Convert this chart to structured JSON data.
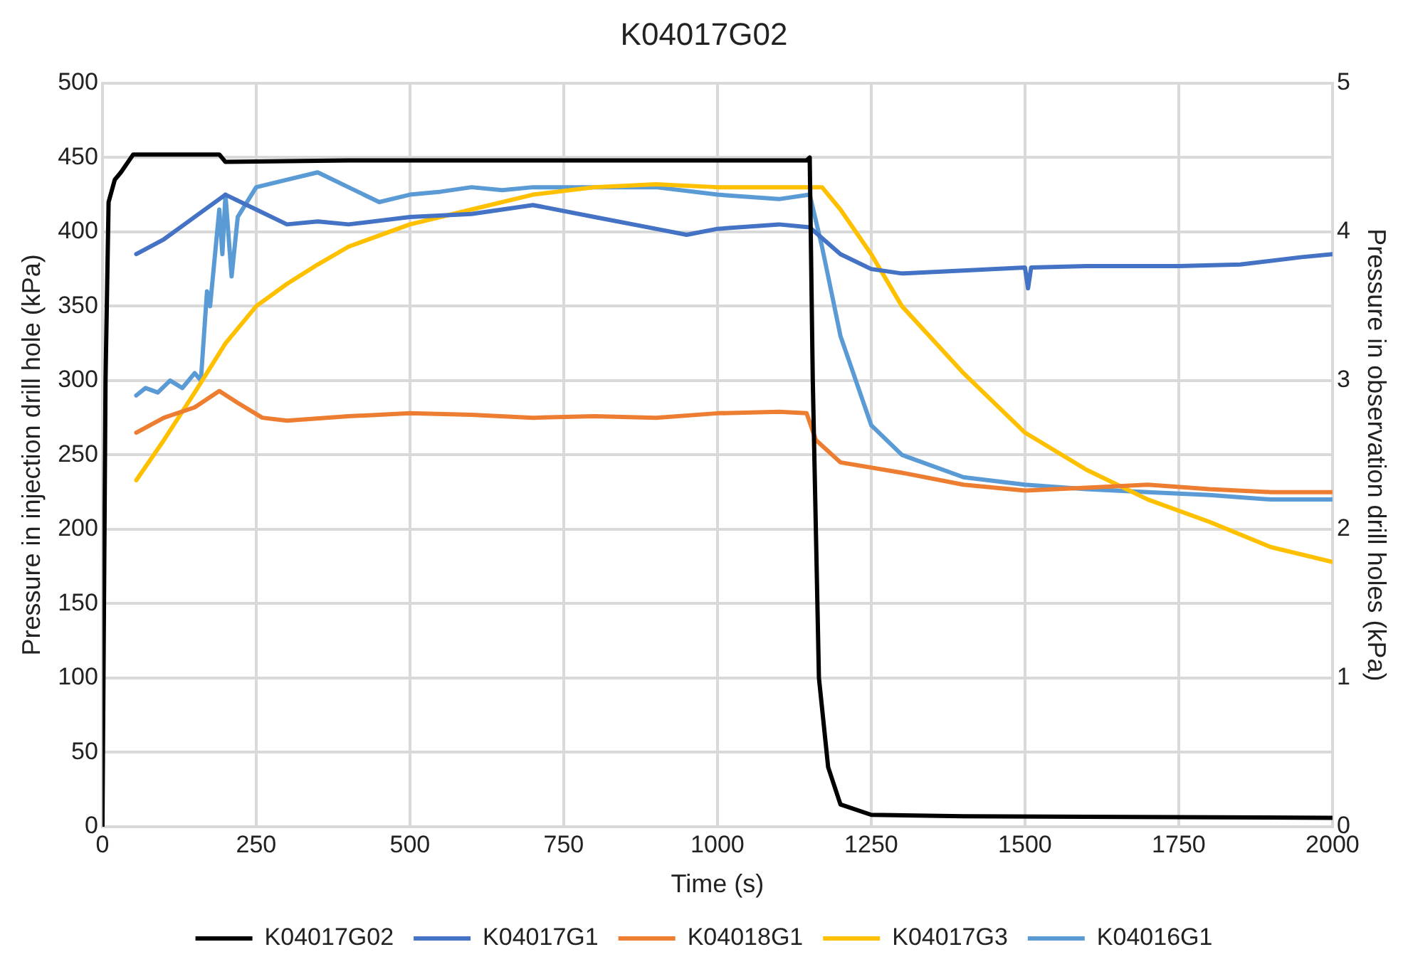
{
  "chart_data": {
    "type": "line",
    "title": "K04017G02",
    "xlabel": "Time (s)",
    "ylabel": "Pressure in injection drill hole (kPa)",
    "y2label": "Pressure in observation drill holes (kPa)",
    "xlim": [
      0,
      2000
    ],
    "xticks": [
      0,
      250,
      500,
      750,
      1000,
      1250,
      1500,
      1750,
      2000
    ],
    "ylim": [
      0,
      500
    ],
    "yticks": [
      0,
      50,
      100,
      150,
      200,
      250,
      300,
      350,
      400,
      450,
      500
    ],
    "y2lim": [
      0,
      5
    ],
    "y2ticks": [
      0,
      1,
      2,
      3,
      4,
      5
    ],
    "grid": true,
    "legend": "bottom",
    "marker": "none",
    "line_style": "solid",
    "series": [
      {
        "name": "K04017G02",
        "color": "#000000",
        "x": [
          0,
          5,
          10,
          20,
          30,
          50,
          100,
          190,
          200,
          400,
          800,
          1145,
          1150,
          1155,
          1165,
          1180,
          1200,
          1250,
          1400,
          2000
        ],
        "values": [
          0,
          300,
          420,
          435,
          440,
          452,
          452,
          452,
          447,
          448,
          448,
          448,
          450,
          300,
          100,
          40,
          15,
          8,
          7,
          6
        ]
      },
      {
        "name": "K04017G1",
        "color": "#4472c4",
        "axis": "y2",
        "x": [
          55,
          100,
          150,
          200,
          250,
          300,
          350,
          400,
          500,
          600,
          700,
          800,
          900,
          950,
          1000,
          1100,
          1150,
          1200,
          1250,
          1300,
          1400,
          1500,
          1505,
          1510,
          1600,
          1750,
          1850,
          1950,
          2000
        ],
        "values": [
          3.85,
          3.95,
          4.1,
          4.25,
          4.15,
          4.05,
          4.07,
          4.05,
          4.1,
          4.12,
          4.18,
          4.1,
          4.02,
          3.98,
          4.02,
          4.05,
          4.03,
          3.85,
          3.75,
          3.72,
          3.74,
          3.76,
          3.62,
          3.76,
          3.77,
          3.77,
          3.78,
          3.83,
          3.85
        ]
      },
      {
        "name": "K04018G1",
        "color": "#ed7d31",
        "axis": "y2",
        "x": [
          55,
          100,
          150,
          190,
          220,
          260,
          300,
          400,
          500,
          600,
          700,
          800,
          900,
          1000,
          1100,
          1145,
          1160,
          1200,
          1300,
          1400,
          1500,
          1600,
          1700,
          1800,
          1900,
          2000
        ],
        "values": [
          2.65,
          2.75,
          2.82,
          2.93,
          2.85,
          2.75,
          2.73,
          2.76,
          2.78,
          2.77,
          2.75,
          2.76,
          2.75,
          2.78,
          2.79,
          2.78,
          2.6,
          2.45,
          2.38,
          2.3,
          2.26,
          2.28,
          2.3,
          2.27,
          2.25,
          2.25
        ]
      },
      {
        "name": "K04017G3",
        "color": "#ffc000",
        "axis": "y2",
        "x": [
          55,
          100,
          150,
          200,
          250,
          300,
          350,
          400,
          500,
          600,
          700,
          800,
          900,
          1000,
          1100,
          1150,
          1170,
          1200,
          1250,
          1300,
          1400,
          1500,
          1600,
          1700,
          1800,
          1900,
          2000
        ],
        "values": [
          2.33,
          2.6,
          2.92,
          3.25,
          3.5,
          3.65,
          3.78,
          3.9,
          4.05,
          4.15,
          4.25,
          4.3,
          4.32,
          4.3,
          4.3,
          4.3,
          4.3,
          4.15,
          3.85,
          3.5,
          3.05,
          2.65,
          2.4,
          2.2,
          2.05,
          1.88,
          1.78
        ]
      },
      {
        "name": "K04016G1",
        "color": "#5b9bd5",
        "axis": "y2",
        "x": [
          55,
          70,
          90,
          110,
          130,
          150,
          160,
          170,
          175,
          190,
          195,
          200,
          210,
          220,
          250,
          300,
          350,
          400,
          450,
          500,
          550,
          600,
          650,
          700,
          800,
          900,
          1000,
          1100,
          1150,
          1170,
          1200,
          1250,
          1300,
          1400,
          1500,
          1600,
          1700,
          1800,
          1900,
          2000
        ],
        "values": [
          2.9,
          2.95,
          2.92,
          3.0,
          2.95,
          3.05,
          3.0,
          3.6,
          3.5,
          4.15,
          3.85,
          4.25,
          3.7,
          4.1,
          4.3,
          4.35,
          4.4,
          4.3,
          4.2,
          4.25,
          4.27,
          4.3,
          4.28,
          4.3,
          4.3,
          4.3,
          4.25,
          4.22,
          4.25,
          3.9,
          3.3,
          2.7,
          2.5,
          2.35,
          2.3,
          2.27,
          2.25,
          2.23,
          2.2,
          2.2
        ]
      }
    ]
  }
}
